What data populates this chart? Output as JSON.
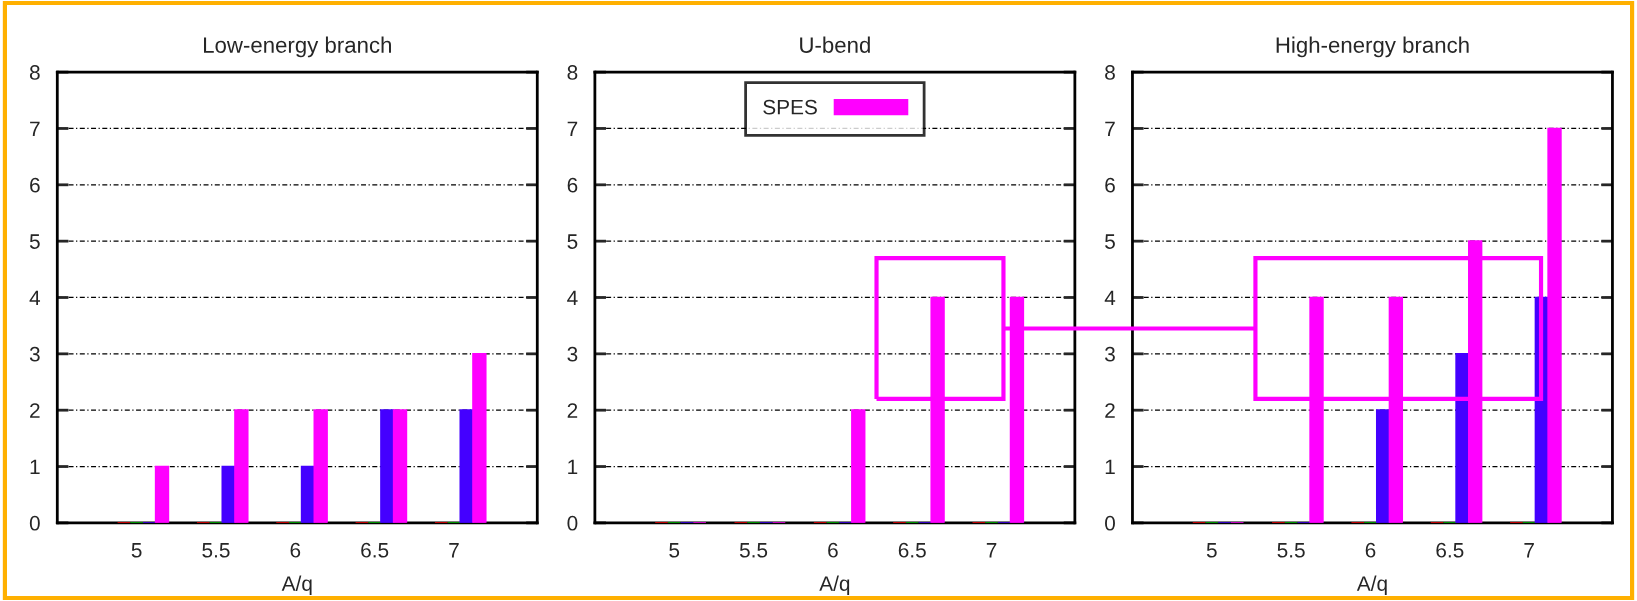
{
  "chart_data": [
    {
      "type": "bar",
      "title": "Low-energy branch",
      "xlabel": "A/q",
      "categories": [
        "5",
        "5.5",
        "6",
        "6.5",
        "7"
      ],
      "ylim": [
        0,
        8
      ],
      "yticks": [
        0,
        1,
        2,
        3,
        4,
        5,
        6,
        7,
        8
      ],
      "grid": "y",
      "legend": false,
      "series": [
        {
          "color": "#ff0000",
          "values": [
            0,
            0,
            0,
            0,
            0
          ]
        },
        {
          "color": "#00c000",
          "values": [
            0,
            0,
            0,
            0,
            0
          ]
        },
        {
          "color": "#4400ff",
          "values": [
            0,
            1,
            1,
            2,
            2
          ]
        },
        {
          "color": "#ff00ff",
          "values": [
            1,
            2,
            2,
            2,
            3
          ]
        }
      ]
    },
    {
      "type": "bar",
      "title": "U-bend",
      "xlabel": "A/q",
      "categories": [
        "5",
        "5.5",
        "6",
        "6.5",
        "7"
      ],
      "ylim": [
        0,
        8
      ],
      "yticks": [
        0,
        1,
        2,
        3,
        4,
        5,
        6,
        7,
        8
      ],
      "grid": "y",
      "legend": "top",
      "series": [
        {
          "color": "#ff0000",
          "values": [
            0,
            0,
            0,
            0,
            0
          ]
        },
        {
          "color": "#00c000",
          "values": [
            0,
            0,
            0,
            0,
            0
          ]
        },
        {
          "color": "#4400ff",
          "values": [
            0,
            0,
            0,
            0,
            0
          ]
        },
        {
          "name": "SPES",
          "color": "#ff00ff",
          "values": [
            0,
            0,
            2,
            4,
            4
          ]
        }
      ]
    },
    {
      "type": "bar",
      "title": "High-energy branch",
      "xlabel": "A/q",
      "categories": [
        "5",
        "5.5",
        "6",
        "6.5",
        "7"
      ],
      "ylim": [
        0,
        8
      ],
      "yticks": [
        0,
        1,
        2,
        3,
        4,
        5,
        6,
        7,
        8
      ],
      "grid": "y",
      "legend": false,
      "series": [
        {
          "color": "#ff0000",
          "values": [
            0,
            0,
            0,
            0,
            0
          ]
        },
        {
          "color": "#00c000",
          "values": [
            0,
            0,
            0,
            0,
            0
          ]
        },
        {
          "color": "#4400ff",
          "values": [
            0,
            0,
            2,
            3,
            4
          ]
        },
        {
          "color": "#ff00ff",
          "values": [
            0,
            4,
            4,
            5,
            7
          ]
        }
      ]
    }
  ]
}
